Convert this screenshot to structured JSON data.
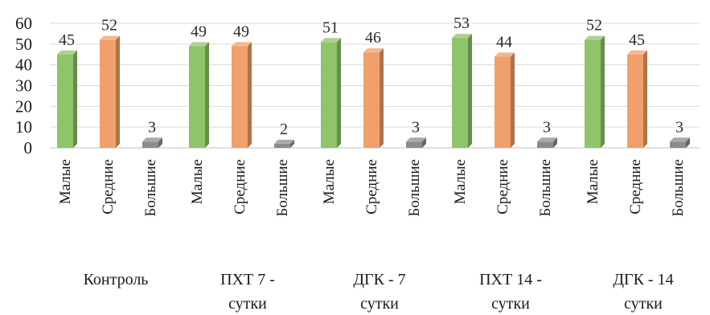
{
  "chart_data": {
    "type": "bar",
    "title": "",
    "xlabel": "",
    "ylabel": "",
    "ylim": [
      0,
      60
    ],
    "yticks": [
      0,
      10,
      20,
      30,
      40,
      50,
      60
    ],
    "grid": true,
    "groups": [
      {
        "label_lines": [
          "Контроль"
        ],
        "bars": [
          {
            "category": "Малые",
            "value": 45
          },
          {
            "category": "Средние",
            "value": 52
          },
          {
            "category": "Большие",
            "value": 3
          }
        ]
      },
      {
        "label_lines": [
          "ПХТ 7 -",
          "сутки"
        ],
        "bars": [
          {
            "category": "Малые",
            "value": 49
          },
          {
            "category": "Средние",
            "value": 49
          },
          {
            "category": "Большие",
            "value": 2
          }
        ]
      },
      {
        "label_lines": [
          "ДГК - 7",
          "сутки"
        ],
        "bars": [
          {
            "category": "Малые",
            "value": 51
          },
          {
            "category": "Средние",
            "value": 46
          },
          {
            "category": "Большие",
            "value": 3
          }
        ]
      },
      {
        "label_lines": [
          "ПХТ 14 -",
          "сутки"
        ],
        "bars": [
          {
            "category": "Малые",
            "value": 53
          },
          {
            "category": "Средние",
            "value": 44
          },
          {
            "category": "Большие",
            "value": 3
          }
        ]
      },
      {
        "label_lines": [
          "ДГК - 14",
          "сутки"
        ],
        "bars": [
          {
            "category": "Малые",
            "value": 52
          },
          {
            "category": "Средние",
            "value": 45
          },
          {
            "category": "Большие",
            "value": 3
          }
        ]
      }
    ],
    "colors": {
      "Малые": "#8fc46a",
      "Средние": "#f0a06a",
      "Большие": "#8c8c8c"
    }
  }
}
